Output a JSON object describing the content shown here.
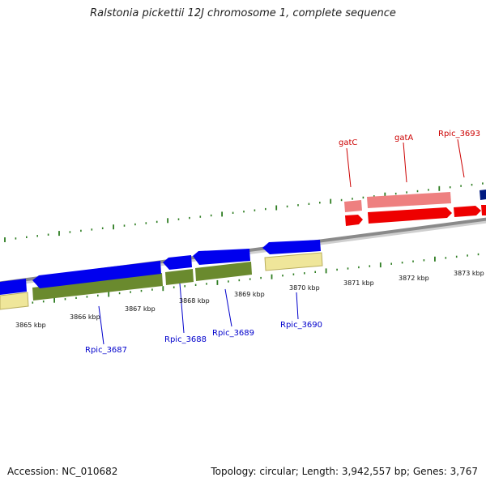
{
  "title": "Ralstonia pickettii 12J chromosome 1, complete sequence",
  "footer": {
    "accession": "Accession: NC_010682",
    "summary": "Topology: circular; Length: 3,942,557 bp; Genes: 3,767"
  },
  "colors": {
    "tick": "#2e7d22",
    "label_blue": "#0000cc",
    "label_red": "#cc0000",
    "gene_blue": "#0000ee",
    "gene_navy": "#001a80",
    "gene_red": "#ee0000",
    "gene_pink": "#ee8080",
    "olive": "#6a8a2e",
    "khaki": "#efe69a",
    "backbone": "#8a8a8a"
  },
  "scale_labels": [
    "3865 kbp",
    "3866 kbp",
    "3867 kbp",
    "3868 kbp",
    "3869 kbp",
    "3870 kbp",
    "3871 kbp",
    "3872 kbp",
    "3873 kbp"
  ],
  "gene_labels_bottom": [
    "Rpic_3687",
    "Rpic_3688",
    "Rpic_3689",
    "Rpic_3690"
  ],
  "gene_labels_top": [
    "gatC",
    "gatA",
    "Rpic_3693"
  ]
}
